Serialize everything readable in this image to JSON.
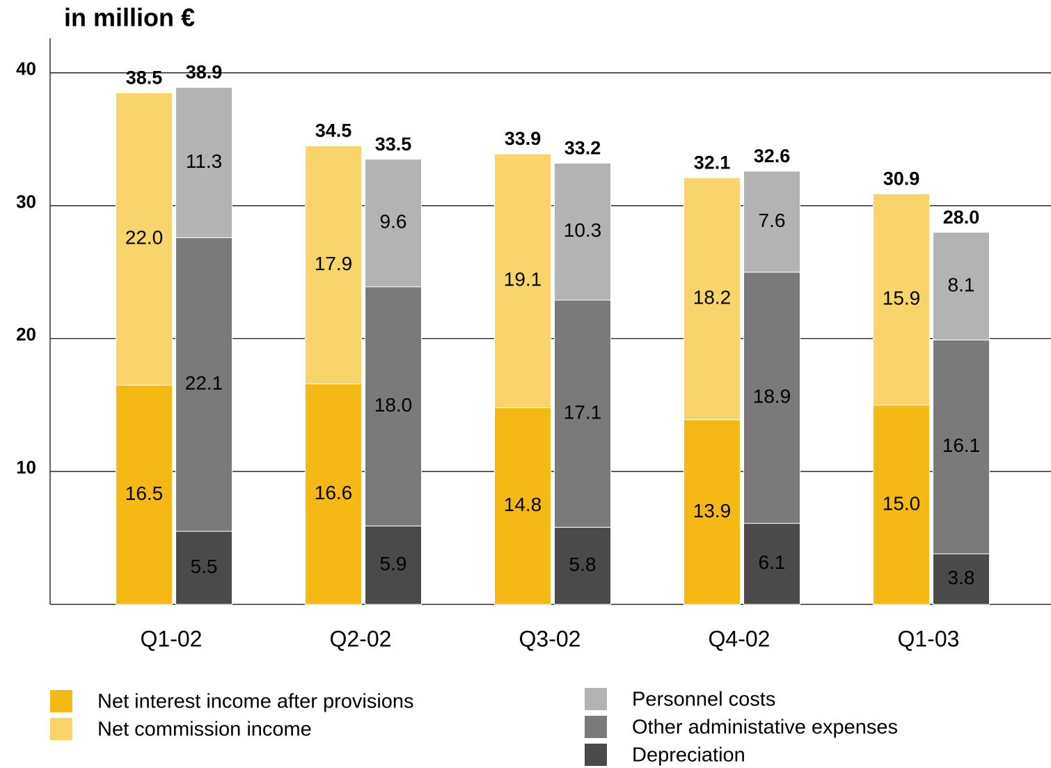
{
  "chart_data": {
    "type": "stacked_bar",
    "title": "in million €",
    "categories": [
      "Q1-02",
      "Q2-02",
      "Q3-02",
      "Q4-02",
      "Q1-03"
    ],
    "series": [
      {
        "name": "Net interest income after provisions",
        "color": "#f5b915",
        "stack": 0,
        "values": [
          16.5,
          16.6,
          14.8,
          13.9,
          15.0
        ],
        "value_labels": [
          "16.5",
          "16.6",
          "14.8",
          "13.9",
          "15.0"
        ]
      },
      {
        "name": "Net commission income",
        "color": "#f8d46a",
        "stack": 0,
        "values": [
          22.0,
          17.9,
          19.1,
          18.2,
          15.9
        ],
        "value_labels": [
          "22.0",
          "17.9",
          "19.1",
          "18.2",
          "15.9"
        ]
      },
      {
        "name": "Depreciation",
        "color": "#4a4a4a",
        "stack": 1,
        "values": [
          5.5,
          5.9,
          5.8,
          6.1,
          3.8
        ],
        "value_labels": [
          "5.5",
          "5.9",
          "5.8",
          "6.1",
          "3.8"
        ]
      },
      {
        "name": "Other administative expenses",
        "color": "#7a7a7a",
        "stack": 1,
        "values": [
          22.1,
          18.0,
          17.1,
          18.9,
          16.1
        ],
        "value_labels": [
          "22.1",
          "18.0",
          "17.1",
          "18.9",
          "16.1"
        ]
      },
      {
        "name": "Personnel costs",
        "color": "#b3b3b3",
        "stack": 1,
        "values": [
          11.3,
          9.6,
          10.3,
          7.6,
          8.1
        ],
        "value_labels": [
          "11.3",
          "9.6",
          "10.3",
          "7.6",
          "8.1"
        ]
      }
    ],
    "totals": [
      {
        "stack": 0,
        "values": [
          38.5,
          34.5,
          33.9,
          32.1,
          30.9
        ],
        "value_labels": [
          "38.5",
          "34.5",
          "33.9",
          "32.1",
          "30.9"
        ]
      },
      {
        "stack": 1,
        "values": [
          38.9,
          33.5,
          33.2,
          32.6,
          28.0
        ],
        "value_labels": [
          "38.9",
          "33.5",
          "33.2",
          "32.6",
          "28.0"
        ]
      }
    ],
    "ylim": [
      0,
      42.6
    ],
    "yticks": [
      10,
      20,
      30,
      40
    ],
    "grid": true
  }
}
